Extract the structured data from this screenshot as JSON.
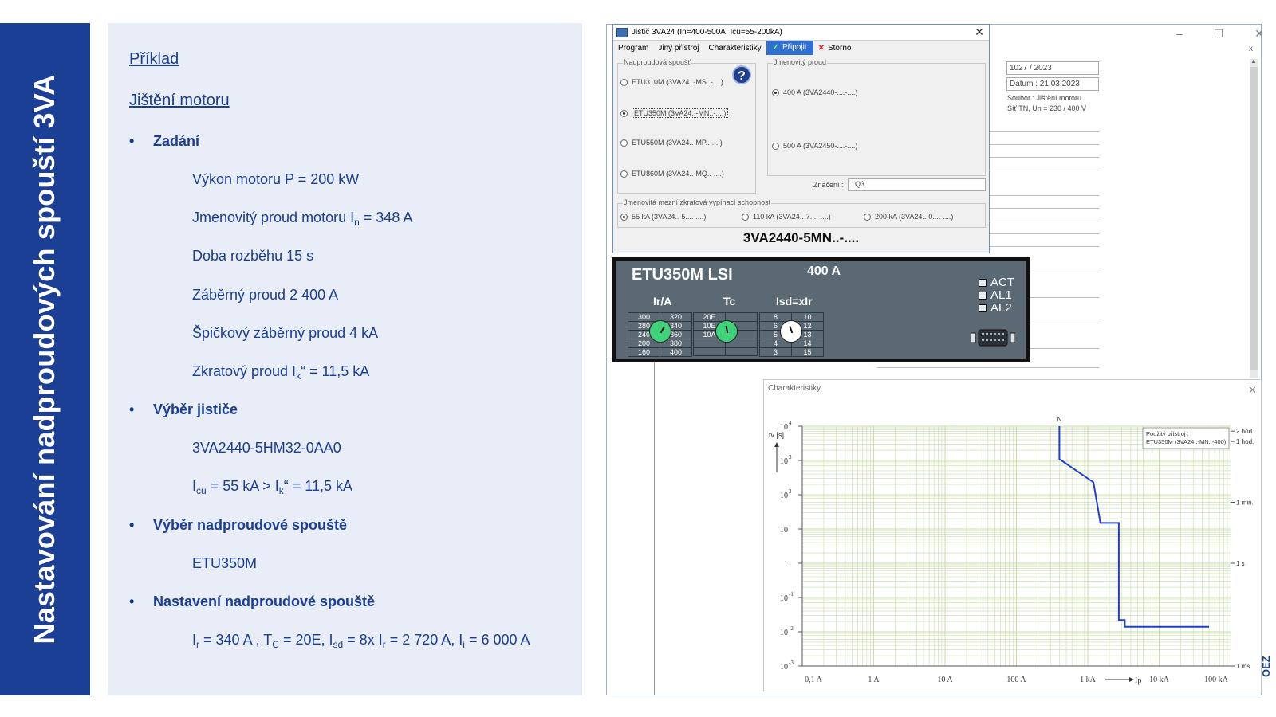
{
  "slide": {
    "side_title": "Nastavování nadproudových spouští 3VA",
    "heading_example": "Příklad",
    "heading_topic": "Jištění motoru",
    "bullet_glyph": "•",
    "sections": {
      "zadani": "Zadání",
      "vyber_jistice": "Výběr jističe",
      "vyber_spouste": "Výběr nadproudové spouště",
      "nastaveni": "Nastavení nadproudové spouště"
    },
    "lines": {
      "power": "Výkon motoru P = 200 kW",
      "rated_current_pre": "Jmenovitý proud motoru I",
      "rated_current_sub": "n",
      "rated_current_post": " = 348 A",
      "start_time": "Doba rozběhu 15 s",
      "start_current": "Záběrný proud 2 400 A",
      "peak_start": "Špičkový záběrný proud 4 kA",
      "short_pre": "Zkratový proud I",
      "short_sub": "k",
      "short_post": "“ = 11,5 kA",
      "breaker_code": "3VA2440-5HM32-0AA0",
      "icu_i": "I",
      "icu_sub": "cu",
      "icu_mid": " = 55 kA > I",
      "icu_sub2": "k",
      "icu_post": "“ = 11,5 kA",
      "release": "ETU350M",
      "set_ir": "I",
      "set_ir_sub": "r",
      "set_ir_val": " = 340 A , T",
      "set_tc_sub": "C",
      "set_tc_val": " = 20E, I",
      "set_isd_sub": "sd",
      "set_isd_val": " = 8x I",
      "set_ir2_sub": "r",
      "set_ii_pre": " = 2 720 A, I",
      "set_ii_sub": "i",
      "set_ii_val": " = 6 000 A"
    },
    "brand": "OEZ"
  },
  "app": {
    "window_controls": {
      "minimize": "–",
      "maximize": "☐",
      "close": "✕"
    },
    "info": {
      "number": "1027 / 2023",
      "date": "Datum : 21.03.2023",
      "file": "Soubor : Jištění motoru",
      "net": "Síť TN, Un = 230 / 400 V"
    },
    "scroll_x": "x",
    "scroll_up": "▲"
  },
  "dialog": {
    "title": "Jistič 3VA24 (In=400-500A, Icu=55-200kA)",
    "close": "✕",
    "menu": {
      "program": "Program",
      "other": "Jiný přístroj",
      "characteristics": "Charakteristiky",
      "connect": "Připojit",
      "cancel": "Storno",
      "check": "✓",
      "x": "✕"
    },
    "release_group": {
      "label": "Nadproudová spoušť",
      "options": [
        {
          "label": "ETU310M (3VA24..-MS..-....)",
          "selected": false
        },
        {
          "label": "ETU350M (3VA24..-MN..-....)",
          "selected": true
        },
        {
          "label": "ETU550M (3VA24..-MP..-....)",
          "selected": false
        },
        {
          "label": "ETU860M (3VA24..-MQ..-....)",
          "selected": false
        }
      ]
    },
    "help": "?",
    "rated_group": {
      "label": "Jmenovitý proud",
      "options": [
        {
          "label": "400 A (3VA2440-....-....)",
          "selected": true
        },
        {
          "label": "500 A (3VA2450-....-....)",
          "selected": false
        }
      ]
    },
    "mark_label": "Značení :",
    "mark_value": "1Q3",
    "breaking_group": {
      "label": "Jmenovitá mezní zkratová vypínací schopnost",
      "options": [
        {
          "label": "55 kA (3VA24..-5....-....)",
          "selected": true
        },
        {
          "label": "110 kA (3VA24..-7....-....)",
          "selected": false
        },
        {
          "label": "200 kA (3VA24..-0....-....)",
          "selected": false
        }
      ]
    },
    "order_code": "3VA2440-5MN..-...."
  },
  "etu": {
    "title": "ETU350M LSI",
    "rated": "400 A",
    "col_ir": "Ir/A",
    "col_tc": "Tc",
    "col_isd": "Isd=xIr",
    "ir_rows": [
      [
        "300",
        "320"
      ],
      [
        "280",
        "340"
      ],
      [
        "240",
        "360"
      ],
      [
        "200",
        "380"
      ],
      [
        "160",
        "400"
      ]
    ],
    "tc_rows": [
      [
        "20E",
        ""
      ],
      [
        "10E",
        ""
      ],
      [
        "10A",
        ""
      ],
      [
        "",
        ""
      ],
      [
        "",
        ""
      ]
    ],
    "isd_rows": [
      [
        "8",
        "10"
      ],
      [
        "6",
        "12"
      ],
      [
        "5",
        "13"
      ],
      [
        "4",
        "14"
      ],
      [
        "3",
        "15"
      ]
    ],
    "leds": [
      "ACT",
      "AL1",
      "AL2"
    ],
    "colors": {
      "dial_green": "#3fd27a",
      "dial_white": "#ffffff",
      "panel": "#5b6975"
    }
  },
  "characteristics": {
    "title": "Charakteristiky",
    "close": "✕",
    "legend_line1": "Použitý přístroj :",
    "legend_line2": "ETU350M (3VA24..-MN..-400)",
    "n_marker": "N",
    "y_axis_label": "tv [s]",
    "x_axis_label": "Ip",
    "chart_data": {
      "type": "line",
      "x_scale": "log",
      "y_scale": "log",
      "x_ticks": [
        "0,1 A",
        "1 A",
        "10 A",
        "100 A",
        "1 kA",
        "10 kA",
        "100 kA"
      ],
      "x_tick_values": [
        0.1,
        1,
        10,
        100,
        1000,
        10000,
        100000
      ],
      "y_ticks": [
        {
          "base": "10",
          "exp": "4"
        },
        {
          "base": "10",
          "exp": "3"
        },
        {
          "base": "10",
          "exp": "2"
        },
        {
          "base": "10",
          "exp": ""
        },
        {
          "base": "1",
          "exp": ""
        },
        {
          "base": "10",
          "exp": "-1"
        },
        {
          "base": "10",
          "exp": "-2"
        },
        {
          "base": "10",
          "exp": "-3"
        }
      ],
      "y_tick_values": [
        10000,
        1000,
        100,
        10,
        1,
        0.1,
        0.01,
        0.001
      ],
      "right_annotations": [
        {
          "label": "2 hod.",
          "y": 7200
        },
        {
          "label": "1 hod.",
          "y": 3600
        },
        {
          "label": "1 min.",
          "y": 60
        },
        {
          "label": "1 s",
          "y": 1
        },
        {
          "label": "1 ms",
          "y": 0.001
        }
      ],
      "xlim": [
        0.1,
        100000
      ],
      "ylim": [
        0.001,
        10000
      ],
      "grid": true,
      "colors": {
        "grid": "#c9dcaa",
        "curve": "#1f3fd0"
      },
      "series": [
        {
          "x": [
            400,
            400,
            1200,
            1500,
            1500,
            2720,
            2720,
            3300,
            3300,
            6000,
            6000,
            50000
          ],
          "y": [
            10000,
            1100,
            230,
            15,
            15,
            15,
            0.022,
            0.022,
            0.014,
            0.014,
            0.014,
            0.014
          ]
        }
      ]
    }
  }
}
